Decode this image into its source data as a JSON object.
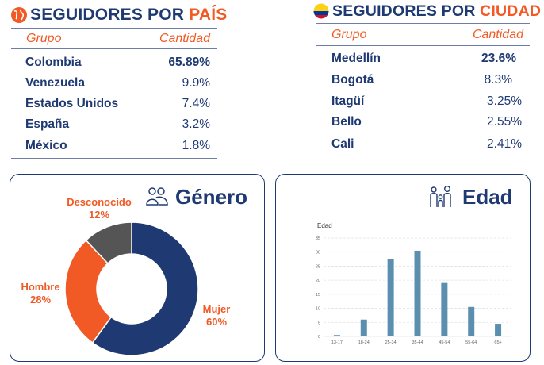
{
  "country": {
    "title_prefix": "SEGUIDORES POR ",
    "title_accent": "PAÍS",
    "icon": "globe-icon",
    "col_group": "Grupo",
    "col_amount": "Cantidad",
    "rows": [
      {
        "name": "Colombia",
        "value": "65.89%",
        "strong": true
      },
      {
        "name": "Venezuela",
        "value": "9.9%"
      },
      {
        "name": "Estados Unidos",
        "value": "7.4%"
      },
      {
        "name": "España",
        "value": "3.2%"
      },
      {
        "name": "México",
        "value": "1.8%"
      }
    ]
  },
  "city": {
    "title_prefix": "SEGUIDORES POR ",
    "title_accent": "CIUDAD",
    "icon": "colombia-flag-icon",
    "col_group": "Grupo",
    "col_amount": "Cantidad",
    "rows": [
      {
        "name": "Medellín",
        "value": "23.6%",
        "strong": true
      },
      {
        "name": "Bogotá",
        "value": "8.3%"
      },
      {
        "name": "Itagüí",
        "value": "3.25%"
      },
      {
        "name": "Bello",
        "value": "2.55%"
      },
      {
        "name": "Cali",
        "value": "2.41%"
      }
    ]
  },
  "gender": {
    "title": "Género",
    "icon": "people-icon",
    "labels": {
      "unknown": {
        "name": "Desconocido",
        "pct": "12%"
      },
      "male": {
        "name": "Hombre",
        "pct": "28%"
      },
      "female": {
        "name": "Mujer",
        "pct": "60%"
      }
    }
  },
  "age": {
    "title": "Edad",
    "icon": "family-icon"
  },
  "colors": {
    "navy": "#1f3a73",
    "orange": "#f15a24",
    "gray": "#555555",
    "bar": "#5b8fb0"
  },
  "chart_data": [
    {
      "type": "pie",
      "donut": true,
      "categories": [
        "Mujer",
        "Hombre",
        "Desconocido"
      ],
      "values": [
        60,
        28,
        12
      ],
      "colors": [
        "#1f3a73",
        "#f15a24",
        "#555555"
      ]
    },
    {
      "type": "bar",
      "title": "Edad",
      "categories": [
        "13-17",
        "18-24",
        "25-34",
        "35-44",
        "45-54",
        "55-64",
        "65+"
      ],
      "values": [
        0.5,
        6,
        27.5,
        30.5,
        19,
        10.5,
        4.5
      ],
      "yticks": [
        0,
        5,
        10,
        15,
        20,
        25,
        30,
        35
      ],
      "ylim": [
        0,
        35
      ],
      "grid": true,
      "color": "#5b8fb0"
    }
  ]
}
